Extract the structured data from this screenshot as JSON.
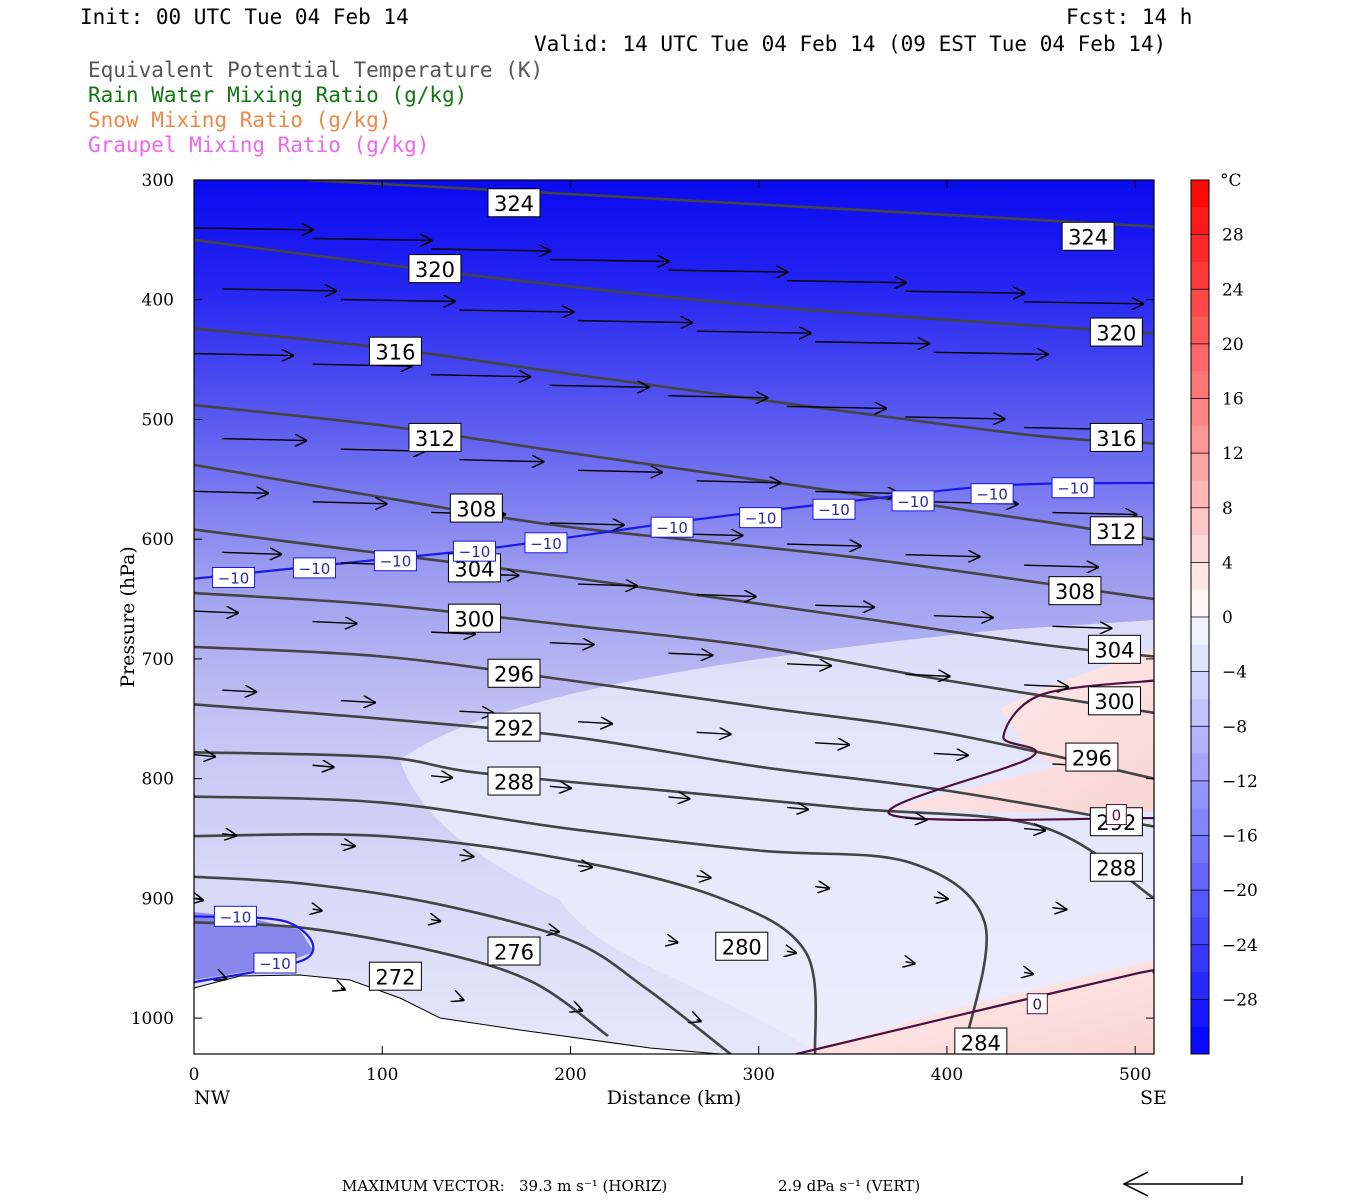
{
  "header": {
    "init": "Init: 00 UTC Tue 04 Feb 14",
    "fcst": "Fcst:   14 h",
    "valid": "Valid: 14 UTC Tue 04 Feb 14 (09 EST Tue 04 Feb 14)",
    "fields": [
      {
        "label": "Equivalent Potential Temperature (K)",
        "color": "#555555"
      },
      {
        "label": "Rain Water Mixing Ratio (g/kg)",
        "color": "#117711"
      },
      {
        "label": "Snow Mixing Ratio (g/kg)",
        "color": "#ee8844"
      },
      {
        "label": "Graupel Mixing Ratio (g/kg)",
        "color": "#ee66ee"
      }
    ]
  },
  "chart_data": {
    "type": "cross-section",
    "xlabel": "Distance (km)",
    "ylabel": "Pressure (hPa)",
    "xlim": [
      0,
      510
    ],
    "ylim": [
      1030,
      300
    ],
    "x_ticks": [
      0,
      100,
      200,
      300,
      400,
      500
    ],
    "y_ticks": [
      300,
      400,
      500,
      600,
      700,
      800,
      900,
      1000
    ],
    "x_end_labels": {
      "left": "NW",
      "right": "SE"
    },
    "colorbar": {
      "unit": "°C",
      "ticks": [
        28,
        24,
        20,
        16,
        12,
        8,
        4,
        0,
        -4,
        -8,
        -12,
        -16,
        -20,
        -24,
        -28
      ],
      "range": [
        -32,
        32
      ]
    },
    "theta_e_contours": [
      {
        "label": "324",
        "points": [
          [
            60,
            300
          ],
          [
            250,
            316
          ],
          [
            500,
            338
          ],
          [
            510,
            340
          ]
        ],
        "labels_at": [
          [
            170,
            319
          ],
          [
            475,
            347
          ]
        ]
      },
      {
        "label": "320",
        "points": [
          [
            0,
            350
          ],
          [
            150,
            380
          ],
          [
            300,
            405
          ],
          [
            450,
            422
          ],
          [
            510,
            428
          ]
        ],
        "labels_at": [
          [
            128,
            374
          ],
          [
            490,
            427
          ]
        ]
      },
      {
        "label": "316",
        "points": [
          [
            0,
            424
          ],
          [
            100,
            440
          ],
          [
            200,
            462
          ],
          [
            350,
            494
          ],
          [
            450,
            514
          ],
          [
            510,
            520
          ]
        ],
        "labels_at": [
          [
            107,
            443
          ],
          [
            490,
            515
          ]
        ]
      },
      {
        "label": "312",
        "points": [
          [
            0,
            488
          ],
          [
            100,
            505
          ],
          [
            200,
            528
          ],
          [
            350,
            562
          ],
          [
            450,
            585
          ],
          [
            510,
            600
          ]
        ],
        "labels_at": [
          [
            128,
            515
          ],
          [
            490,
            593
          ]
        ]
      },
      {
        "label": "308",
        "points": [
          [
            0,
            538
          ],
          [
            100,
            565
          ],
          [
            200,
            590
          ],
          [
            350,
            615
          ],
          [
            510,
            650
          ]
        ],
        "labels_at": [
          [
            150,
            574
          ],
          [
            468,
            643
          ]
        ]
      },
      {
        "label": "304",
        "points": [
          [
            0,
            592
          ],
          [
            100,
            612
          ],
          [
            200,
            632
          ],
          [
            350,
            665
          ],
          [
            450,
            688
          ],
          [
            510,
            698
          ]
        ],
        "labels_at": [
          [
            149,
            624
          ],
          [
            489,
            692
          ]
        ]
      },
      {
        "label": "300",
        "points": [
          [
            0,
            645
          ],
          [
            100,
            655
          ],
          [
            200,
            672
          ],
          [
            300,
            690
          ],
          [
            400,
            718
          ],
          [
            510,
            745
          ]
        ],
        "labels_at": [
          [
            149,
            666
          ],
          [
            489,
            735
          ]
        ]
      },
      {
        "label": "296",
        "points": [
          [
            0,
            690
          ],
          [
            100,
            698
          ],
          [
            200,
            718
          ],
          [
            300,
            740
          ],
          [
            400,
            762
          ],
          [
            510,
            800
          ]
        ],
        "labels_at": [
          [
            170,
            712
          ],
          [
            477,
            782
          ]
        ]
      },
      {
        "label": "292",
        "points": [
          [
            0,
            738
          ],
          [
            100,
            750
          ],
          [
            200,
            765
          ],
          [
            300,
            790
          ],
          [
            400,
            810
          ],
          [
            510,
            840
          ]
        ],
        "labels_at": [
          [
            170,
            757
          ],
          [
            490,
            836
          ]
        ]
      },
      {
        "label": "288",
        "points": [
          [
            0,
            778
          ],
          [
            100,
            782
          ],
          [
            150,
            795
          ],
          [
            250,
            810
          ],
          [
            350,
            825
          ],
          [
            450,
            840
          ],
          [
            510,
            900
          ]
        ],
        "labels_at": [
          [
            170,
            802
          ],
          [
            490,
            874
          ]
        ]
      },
      {
        "label": "284",
        "points": [
          [
            0,
            815
          ],
          [
            100,
            820
          ],
          [
            200,
            842
          ],
          [
            300,
            860
          ],
          [
            380,
            870
          ],
          [
            420,
            920
          ],
          [
            410,
            1020
          ]
        ],
        "labels_at": [
          [
            418,
            1020
          ]
        ]
      },
      {
        "label": "280",
        "points": [
          [
            0,
            848
          ],
          [
            100,
            848
          ],
          [
            200,
            868
          ],
          [
            280,
            900
          ],
          [
            325,
            945
          ],
          [
            330,
            1030
          ]
        ],
        "labels_at": [
          [
            291,
            940
          ]
        ]
      },
      {
        "label": "276",
        "points": [
          [
            0,
            882
          ],
          [
            60,
            888
          ],
          [
            130,
            905
          ],
          [
            200,
            935
          ],
          [
            240,
            975
          ],
          [
            285,
            1030
          ]
        ],
        "labels_at": [
          [
            170,
            944
          ]
        ]
      },
      {
        "label": "272",
        "points": [
          [
            0,
            920
          ],
          [
            60,
            925
          ],
          [
            130,
            945
          ],
          [
            180,
            970
          ],
          [
            220,
            1015
          ]
        ],
        "labels_at": [
          [
            107,
            965
          ]
        ]
      }
    ],
    "temperature_contours": [
      {
        "label": "-10",
        "color": "#1a1ae6",
        "points": [
          [
            0,
            633
          ],
          [
            80,
            620
          ],
          [
            160,
            607
          ],
          [
            260,
            585
          ],
          [
            350,
            568
          ],
          [
            430,
            555
          ],
          [
            510,
            553
          ]
        ],
        "labels_at": [
          [
            21,
            632
          ],
          [
            64,
            624
          ],
          [
            107,
            618
          ],
          [
            149,
            610
          ],
          [
            187,
            603
          ],
          [
            254,
            590
          ],
          [
            301,
            582
          ],
          [
            340,
            575
          ],
          [
            382,
            568
          ],
          [
            424,
            562
          ],
          [
            467,
            557
          ]
        ]
      },
      {
        "label": "-10",
        "color": "#1a1ae6",
        "points": [
          [
            0,
            915
          ],
          [
            50,
            920
          ],
          [
            60,
            950
          ],
          [
            0,
            970
          ]
        ],
        "labels_at": [
          [
            22,
            915
          ],
          [
            43,
            954
          ]
        ]
      },
      {
        "label": "0",
        "color": "#4a1040",
        "points": [
          [
            510,
            718
          ],
          [
            450,
            730
          ],
          [
            430,
            765
          ],
          [
            445,
            782
          ],
          [
            370,
            830
          ],
          [
            510,
            833
          ]
        ],
        "labels_at": [
          [
            490,
            830
          ]
        ]
      },
      {
        "label": "0",
        "color": "#4a1040",
        "points": [
          [
            320,
            1030
          ],
          [
            400,
            1000
          ],
          [
            500,
            963
          ],
          [
            510,
            962
          ]
        ],
        "labels_at": [
          [
            448,
            988
          ]
        ]
      }
    ],
    "wind_vectors_note": "horizontal wind arrows pointing to SE, strongest aloft",
    "footer": {
      "max_vector_label": "MAXIMUM VECTOR:",
      "horiz": "39.3 m s⁻¹ (HORIZ)",
      "vert": "2.9 dPa s⁻¹ (VERT)"
    }
  }
}
